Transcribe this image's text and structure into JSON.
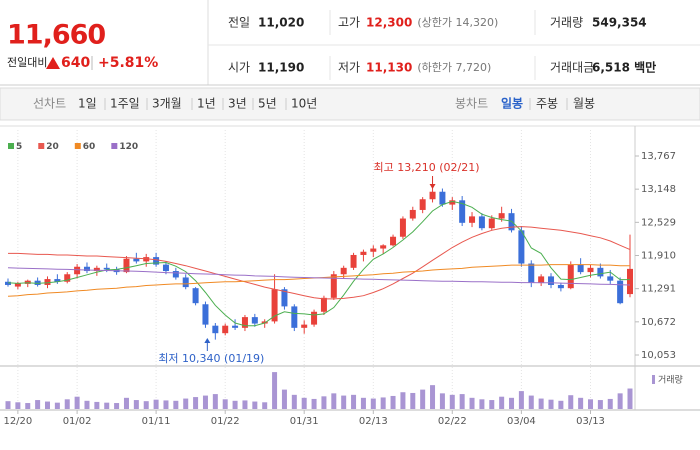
{
  "quote": {
    "price": "11,660",
    "change_label": "전일대비",
    "change": "640",
    "change_pct": "+5.81%"
  },
  "summary": {
    "rows": [
      [
        {
          "label": "전일",
          "value": "11,020"
        },
        {
          "label": "고가",
          "value": "12,300",
          "note": "(상한가 14,320)"
        },
        {
          "label": "거래량",
          "value": "549,354"
        }
      ],
      [
        {
          "label": "시가",
          "value": "11,190"
        },
        {
          "label": "저가",
          "value": "11,130",
          "note": "(하한가 7,720)"
        },
        {
          "label": "거래대금",
          "value": "6,518 백만"
        }
      ]
    ]
  },
  "toolbar": {
    "line_chart": "선차트",
    "line_periods": [
      "1일",
      "1주일",
      "3개월",
      "1년",
      "3년",
      "5년",
      "10년"
    ],
    "candle_chart": "봉차트",
    "candle_periods": [
      "일봉",
      "주봉",
      "월봉"
    ],
    "active": "일봉"
  },
  "chart_data": {
    "type": "candlestick",
    "categories": [
      null,
      "12/20",
      null,
      null,
      null,
      null,
      null,
      "01/02",
      null,
      null,
      null,
      null,
      null,
      null,
      null,
      "01/11",
      null,
      null,
      null,
      null,
      null,
      null,
      "01/22",
      null,
      null,
      null,
      null,
      null,
      null,
      null,
      "01/31",
      null,
      null,
      null,
      null,
      null,
      null,
      "02/13",
      null,
      null,
      null,
      null,
      null,
      null,
      null,
      "02/22",
      null,
      null,
      null,
      null,
      null,
      null,
      "03/04",
      null,
      null,
      null,
      null,
      null,
      null,
      "03/13",
      null,
      null,
      null,
      null
    ],
    "open": [
      11420,
      11330,
      11380,
      11440,
      11360,
      11470,
      11420,
      11560,
      11700,
      11620,
      11680,
      11650,
      11600,
      11850,
      11800,
      11880,
      11740,
      11620,
      11500,
      11300,
      11000,
      10600,
      10460,
      10600,
      10560,
      10760,
      10640,
      10680,
      11280,
      10960,
      10560,
      10620,
      10860,
      11120,
      11560,
      11680,
      11920,
      11980,
      12040,
      12100,
      12260,
      12600,
      12760,
      12960,
      13100,
      12860,
      12940,
      12520,
      12640,
      12420,
      12600,
      12700,
      12380,
      11760,
      11400,
      11520,
      11360,
      11300,
      11740,
      11600,
      11680,
      11520,
      11440,
      11190
    ],
    "high": [
      11480,
      11420,
      11460,
      11500,
      11520,
      11560,
      11600,
      11750,
      11780,
      11720,
      11760,
      11700,
      11900,
      11960,
      11940,
      11960,
      11800,
      11680,
      11560,
      11320,
      11050,
      10650,
      10640,
      10720,
      10800,
      10820,
      10720,
      11560,
      11320,
      11000,
      10700,
      10900,
      11160,
      11620,
      11720,
      11960,
      12020,
      12100,
      12120,
      12300,
      12640,
      12820,
      13000,
      13210,
      13160,
      13000,
      13020,
      12720,
      12700,
      12660,
      12820,
      12780,
      12460,
      11820,
      11560,
      11580,
      11400,
      11800,
      11860,
      11740,
      11760,
      11640,
      11500,
      12300
    ],
    "low": [
      11330,
      11280,
      11320,
      11330,
      11300,
      11380,
      11390,
      11480,
      11580,
      11530,
      11600,
      11550,
      11580,
      11760,
      11700,
      11700,
      11560,
      11460,
      11280,
      10980,
      10560,
      10340,
      10420,
      10520,
      10500,
      10580,
      10560,
      10640,
      10900,
      10500,
      10450,
      10580,
      10800,
      11080,
      11480,
      11640,
      11800,
      11880,
      11940,
      12080,
      12220,
      12560,
      12700,
      12900,
      12820,
      12760,
      12460,
      12440,
      12380,
      12380,
      12540,
      12340,
      11700,
      11320,
      11340,
      11300,
      11240,
      11280,
      11560,
      11500,
      11480,
      11380,
      11000,
      11130
    ],
    "close": [
      11360,
      11390,
      11440,
      11360,
      11470,
      11420,
      11560,
      11700,
      11620,
      11680,
      11650,
      11600,
      11850,
      11800,
      11880,
      11740,
      11620,
      11500,
      11320,
      11020,
      10620,
      10460,
      10600,
      10560,
      10760,
      10640,
      10680,
      11280,
      10960,
      10560,
      10620,
      10860,
      11120,
      11560,
      11680,
      11920,
      11980,
      12040,
      12100,
      12260,
      12600,
      12760,
      12960,
      13100,
      12860,
      12940,
      12520,
      12640,
      12420,
      12600,
      12700,
      12380,
      11760,
      11400,
      11520,
      11360,
      11300,
      11740,
      11600,
      11680,
      11520,
      11440,
      11020,
      11660
    ],
    "up_color": "#e8413a",
    "down_color": "#3b6fd9",
    "series": [
      {
        "name": "5",
        "color": "#4caf50",
        "values": [
          11400,
          11390,
          11400,
          11390,
          11400,
          11420,
          11450,
          11500,
          11550,
          11600,
          11640,
          11650,
          11680,
          11720,
          11760,
          11770,
          11780,
          11710,
          11610,
          11440,
          11220,
          10980,
          10800,
          10650,
          10600,
          10600,
          10650,
          10780,
          10860,
          10830,
          10820,
          10800,
          10820,
          10940,
          11170,
          11430,
          11650,
          11840,
          11940,
          12060,
          12200,
          12350,
          12540,
          12740,
          12860,
          12920,
          12880,
          12810,
          12680,
          12620,
          12580,
          12550,
          12370,
          12050,
          11950,
          11680,
          11470,
          11460,
          11500,
          11540,
          11570,
          11600,
          11460,
          11460
        ]
      },
      {
        "name": "20",
        "color": "#e8584f",
        "values": [
          11950,
          11950,
          11940,
          11930,
          11930,
          11920,
          11920,
          11910,
          11900,
          11900,
          11890,
          11880,
          11870,
          11860,
          11850,
          11830,
          11800,
          11760,
          11720,
          11670,
          11620,
          11570,
          11520,
          11470,
          11420,
          11370,
          11320,
          11280,
          11240,
          11200,
          11160,
          11120,
          11100,
          11100,
          11110,
          11130,
          11160,
          11220,
          11290,
          11380,
          11480,
          11580,
          11700,
          11820,
          11940,
          12060,
          12160,
          12250,
          12320,
          12380,
          12420,
          12440,
          12450,
          12440,
          12420,
          12400,
          12380,
          12350,
          12320,
          12280,
          12240,
          12180,
          12100,
          12020
        ]
      },
      {
        "name": "60",
        "color": "#f08a24",
        "values": [
          11150,
          11160,
          11180,
          11190,
          11210,
          11220,
          11230,
          11250,
          11260,
          11280,
          11290,
          11300,
          11320,
          11330,
          11350,
          11360,
          11370,
          11380,
          11380,
          11390,
          11400,
          11410,
          11420,
          11420,
          11430,
          11440,
          11450,
          11460,
          11460,
          11470,
          11480,
          11490,
          11500,
          11510,
          11520,
          11530,
          11540,
          11550,
          11570,
          11580,
          11600,
          11610,
          11620,
          11640,
          11650,
          11660,
          11670,
          11690,
          11700,
          11710,
          11720,
          11730,
          11730,
          11730,
          11730,
          11740,
          11740,
          11740,
          11740,
          11740,
          11730,
          11730,
          11720,
          11720
        ]
      },
      {
        "name": "120",
        "color": "#9a70c8",
        "values": [
          11680,
          11675,
          11670,
          11665,
          11660,
          11655,
          11650,
          11645,
          11640,
          11635,
          11630,
          11625,
          11620,
          11615,
          11610,
          11600,
          11590,
          11585,
          11580,
          11570,
          11565,
          11560,
          11550,
          11545,
          11540,
          11530,
          11525,
          11520,
          11510,
          11505,
          11500,
          11495,
          11490,
          11485,
          11480,
          11475,
          11470,
          11465,
          11460,
          11455,
          11450,
          11445,
          11440,
          11435,
          11430,
          11430,
          11425,
          11420,
          11420,
          11415,
          11410,
          11410,
          11405,
          11405,
          11400,
          11400,
          11395,
          11390,
          11385,
          11380,
          11375,
          11370,
          11365,
          11360
        ]
      }
    ],
    "volume": {
      "name": "거래량",
      "color": "#a995d3",
      "ylim": [
        0,
        1100000
      ],
      "values": [
        210000,
        180000,
        160000,
        240000,
        200000,
        170000,
        260000,
        330000,
        220000,
        190000,
        170000,
        160000,
        300000,
        240000,
        210000,
        250000,
        230000,
        220000,
        280000,
        320000,
        360000,
        400000,
        260000,
        220000,
        230000,
        200000,
        180000,
        990000,
        520000,
        380000,
        300000,
        270000,
        340000,
        420000,
        360000,
        380000,
        300000,
        280000,
        310000,
        350000,
        450000,
        430000,
        520000,
        640000,
        420000,
        380000,
        400000,
        300000,
        260000,
        240000,
        330000,
        300000,
        480000,
        360000,
        280000,
        250000,
        220000,
        370000,
        300000,
        260000,
        240000,
        270000,
        420000,
        549354
      ]
    },
    "ylim": [
      10053,
      13767
    ],
    "yticks": [
      {
        "value": 13767,
        "label": "13,767"
      },
      {
        "value": 13148,
        "label": "13,148"
      },
      {
        "value": 12529,
        "label": "12,529"
      },
      {
        "value": 11910,
        "label": "11,910"
      },
      {
        "value": 11291,
        "label": "11,291"
      },
      {
        "value": 10672,
        "label": "10,672"
      },
      {
        "value": 10053,
        "label": "10,053"
      }
    ],
    "x_grid": true,
    "annotations": [
      {
        "text": "최고 13,210 (02/21)",
        "index": 43,
        "color": "#d9322a",
        "side": "top"
      },
      {
        "text": "최저 10,340 (01/19)",
        "index": 21,
        "color": "#2f62c8",
        "side": "bottom"
      }
    ]
  }
}
